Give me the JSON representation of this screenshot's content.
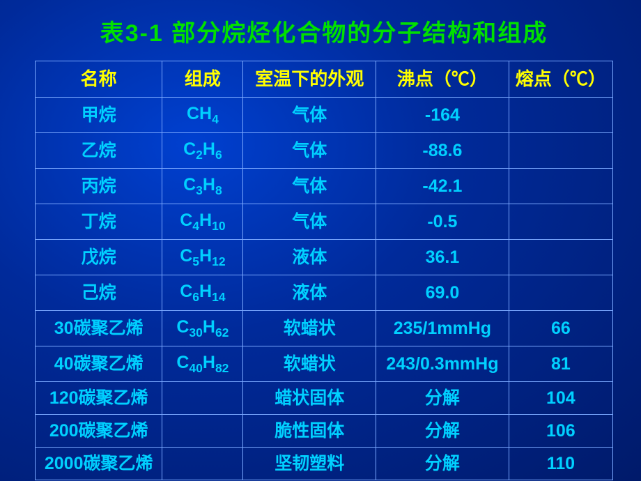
{
  "title": "表3-1  部分烷烃化合物的分子结构和组成",
  "columns": {
    "name": "名称",
    "formula": "组成",
    "appearance": "室温下的外观",
    "bp": "沸点（℃）",
    "mp": "熔点（℃）"
  },
  "rows": [
    {
      "name": "甲烷",
      "formula_html": "CH<sub>4</sub>",
      "appearance": "气体",
      "bp": "-164",
      "mp": ""
    },
    {
      "name": "乙烷",
      "formula_html": "C<sub>2</sub>H<sub>6</sub>",
      "appearance": "气体",
      "bp": "-88.6",
      "mp": ""
    },
    {
      "name": "丙烷",
      "formula_html": "C<sub>3</sub>H<sub>8</sub>",
      "appearance": "气体",
      "bp": "-42.1",
      "mp": ""
    },
    {
      "name": "丁烷",
      "formula_html": "C<sub>4</sub>H<sub>10</sub>",
      "appearance": "气体",
      "bp": "-0.5",
      "mp": ""
    },
    {
      "name": "戊烷",
      "formula_html": "C<sub>5</sub>H<sub>12</sub>",
      "appearance": "液体",
      "bp": "36.1",
      "mp": ""
    },
    {
      "name": "己烷",
      "formula_html": "C<sub>6</sub>H<sub>14</sub>",
      "appearance": "液体",
      "bp": "69.0",
      "mp": ""
    },
    {
      "name": "30碳聚乙烯",
      "formula_html": "C<sub>30</sub>H<sub>62</sub>",
      "appearance": "软蜡状",
      "bp": "235/1mmHg",
      "mp": "66"
    },
    {
      "name": "40碳聚乙烯",
      "formula_html": "C<sub>40</sub>H<sub>82</sub>",
      "appearance": "软蜡状",
      "bp": "243/0.3mmHg",
      "mp": "81"
    },
    {
      "name": "120碳聚乙烯",
      "formula_html": "",
      "appearance": "蜡状固体",
      "bp": "分解",
      "mp": "104"
    },
    {
      "name": "200碳聚乙烯",
      "formula_html": "",
      "appearance": "脆性固体",
      "bp": "分解",
      "mp": "106"
    },
    {
      "name": "2000碳聚乙烯",
      "formula_html": "",
      "appearance": "坚韧塑料",
      "bp": "分解",
      "mp": "110"
    }
  ],
  "styling": {
    "title_color": "#00e000",
    "header_color": "#ffff00",
    "cell_color": "#00d0ff",
    "border_color": "#7aa8ff",
    "background_gradient": [
      "#0040d0",
      "#002a9a",
      "#001a6a"
    ],
    "title_fontsize": 34,
    "header_fontsize": 26,
    "cell_fontsize": 25,
    "column_widths_pct": [
      22,
      14,
      23,
      23,
      18
    ]
  }
}
